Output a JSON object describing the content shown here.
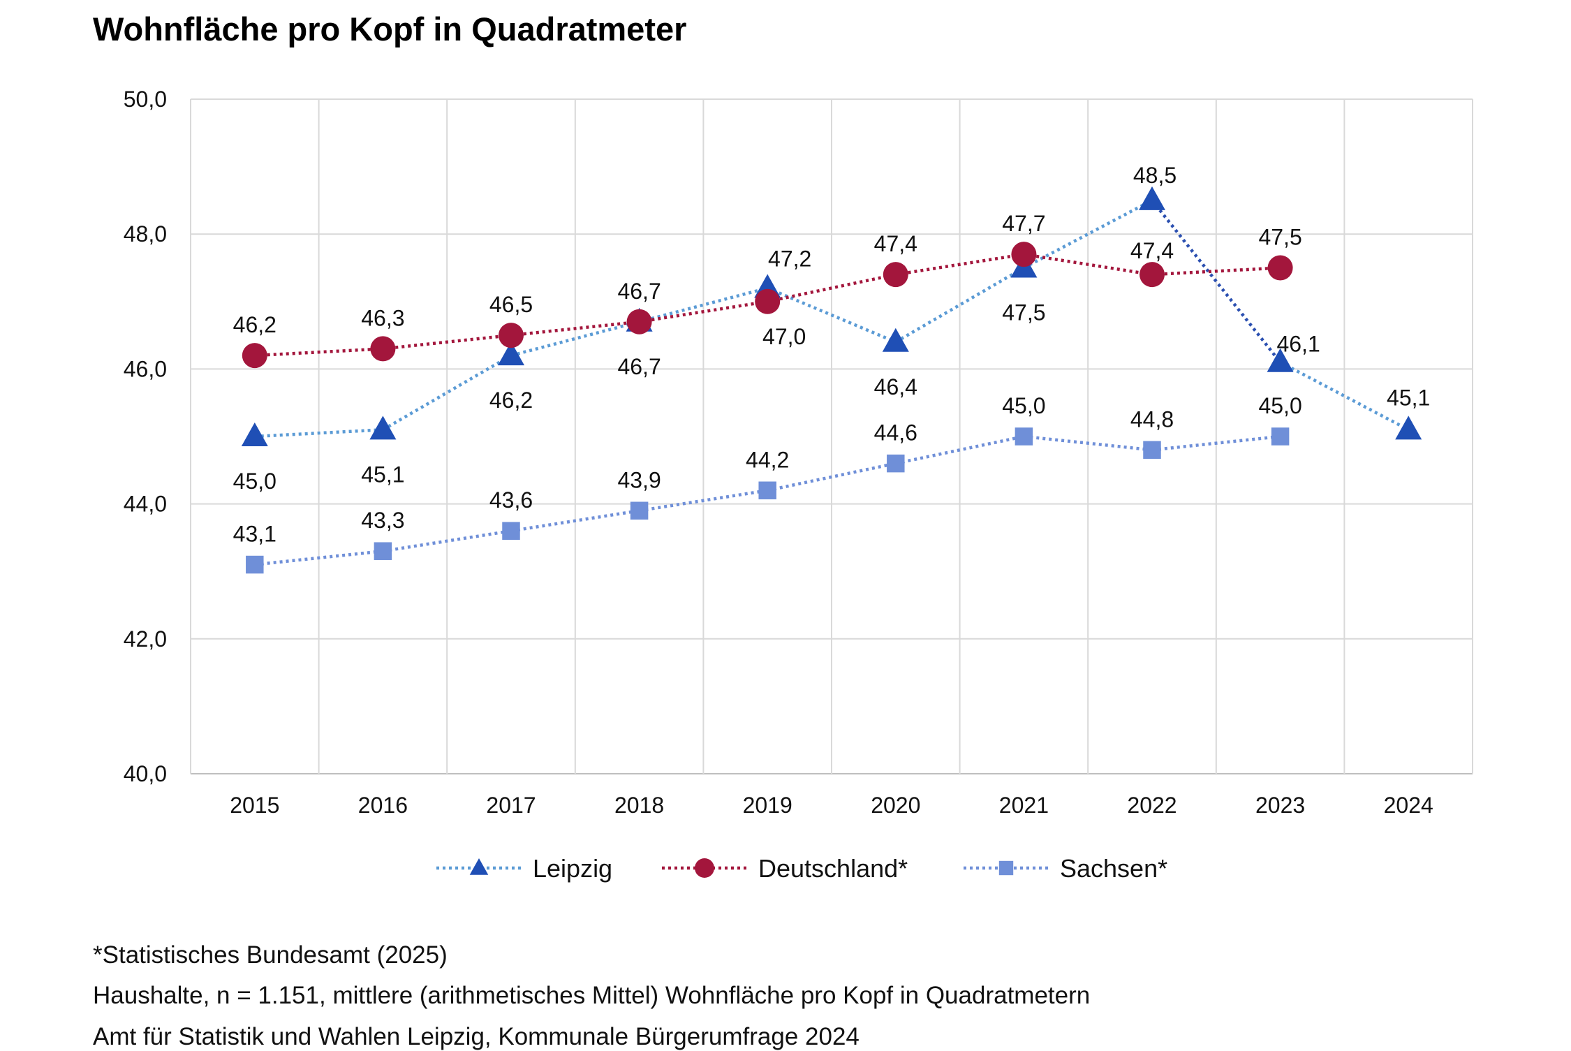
{
  "chart_data": {
    "type": "line",
    "title": "Wohnfläche pro Kopf in Quadratmeter",
    "categories": [
      "2015",
      "2016",
      "2017",
      "2018",
      "2019",
      "2020",
      "2021",
      "2022",
      "2023",
      "2024"
    ],
    "ylim": [
      40,
      50
    ],
    "yticks": [
      "40,0",
      "42,0",
      "44,0",
      "46,0",
      "48,0",
      "50,0"
    ],
    "ytick_values": [
      40,
      42,
      44,
      46,
      48,
      50
    ],
    "grid": true,
    "legend_position": "bottom",
    "series": [
      {
        "name": "Leipzig",
        "marker": "triangle",
        "color": "#1f4fb5",
        "line_color": "#5b9bd5",
        "values": [
          45.0,
          45.1,
          46.2,
          46.7,
          47.2,
          46.4,
          47.5,
          48.5,
          46.1,
          45.1
        ]
      },
      {
        "name": "Deutschland*",
        "marker": "circle",
        "color": "#a3163c",
        "line_color": "#a3163c",
        "values": [
          46.2,
          46.3,
          46.5,
          46.7,
          47.0,
          47.4,
          47.7,
          47.4,
          47.5,
          null
        ]
      },
      {
        "name": "Sachsen*",
        "marker": "square",
        "color": "#6f8fd8",
        "line_color": "#6f8fd8",
        "values": [
          43.1,
          43.3,
          43.6,
          43.9,
          44.2,
          44.6,
          45.0,
          44.8,
          45.0,
          null
        ]
      }
    ]
  },
  "footnotes": [
    "*Statistisches Bundesamt (2025)",
    "Haushalte, n = 1.151, mittlere (arithmetisches Mittel) Wohnfläche pro Kopf in Quadratmetern",
    "Amt für Statistik und Wahlen Leipzig, Kommunale Bürgerumfrage 2024"
  ]
}
